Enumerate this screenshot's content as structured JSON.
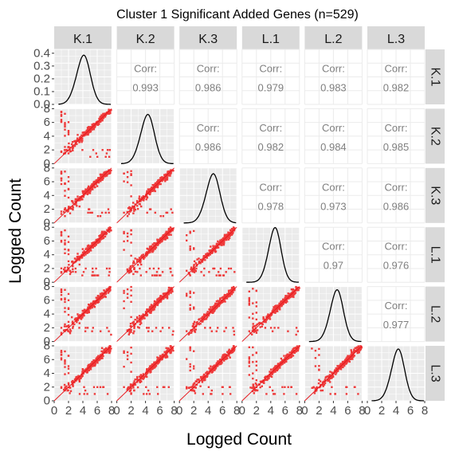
{
  "chart_data": {
    "type": "scatter-matrix",
    "title": "Cluster 1 Significant Added Genes (n=529)",
    "xlabel": "Logged Count",
    "ylabel": "Logged Count",
    "variables": [
      "K.1",
      "K.2",
      "K.3",
      "L.1",
      "L.2",
      "L.3"
    ],
    "corr_label": "Corr:",
    "correlations": [
      {
        "row": "K.1",
        "col": "K.2",
        "value": "0.993"
      },
      {
        "row": "K.1",
        "col": "K.3",
        "value": "0.986"
      },
      {
        "row": "K.1",
        "col": "L.1",
        "value": "0.979"
      },
      {
        "row": "K.1",
        "col": "L.2",
        "value": "0.983"
      },
      {
        "row": "K.1",
        "col": "L.3",
        "value": "0.982"
      },
      {
        "row": "K.2",
        "col": "K.3",
        "value": "0.986"
      },
      {
        "row": "K.2",
        "col": "L.1",
        "value": "0.982"
      },
      {
        "row": "K.2",
        "col": "L.2",
        "value": "0.984"
      },
      {
        "row": "K.2",
        "col": "L.3",
        "value": "0.985"
      },
      {
        "row": "K.3",
        "col": "L.1",
        "value": "0.978"
      },
      {
        "row": "K.3",
        "col": "L.2",
        "value": "0.973"
      },
      {
        "row": "K.3",
        "col": "L.3",
        "value": "0.986"
      },
      {
        "row": "L.1",
        "col": "L.2",
        "value": "0.97"
      },
      {
        "row": "L.1",
        "col": "L.3",
        "value": "0.976"
      },
      {
        "row": "L.2",
        "col": "L.3",
        "value": "0.977"
      }
    ],
    "x_axis": {
      "range": [
        0,
        8
      ],
      "ticks": [
        "0",
        "2",
        "4",
        "6",
        "8"
      ]
    },
    "y_axis_density": {
      "range": [
        0,
        0.43
      ],
      "ticks": [
        "0.0",
        "0.1",
        "0.2",
        "0.3",
        "0.4"
      ]
    },
    "y_axis_scatter": {
      "range": [
        0,
        8
      ],
      "ticks": [
        "0",
        "2",
        "4",
        "6",
        "8"
      ]
    },
    "density_peaks": [
      {
        "var": "K.1",
        "mean": 3.9,
        "sd": 1.0
      },
      {
        "var": "K.2",
        "mean": 4.1,
        "sd": 1.0
      },
      {
        "var": "K.3",
        "mean": 4.5,
        "sd": 1.0
      },
      {
        "var": "L.1",
        "mean": 4.4,
        "sd": 0.9
      },
      {
        "var": "L.2",
        "mean": 4.3,
        "sd": 0.95
      },
      {
        "var": "L.3",
        "mean": 4.1,
        "sd": 0.95
      }
    ],
    "reference_line": "y = x",
    "colors": {
      "points": "#ee3b3b",
      "line": "#e8141a",
      "panel_bg": "#ebebeb",
      "grid": "#ffffff",
      "strip": "#d9d9d9",
      "density": "#000000",
      "corr_text": "#7f7f7f",
      "axis_text": "#4d4d4d"
    },
    "grid": true
  }
}
